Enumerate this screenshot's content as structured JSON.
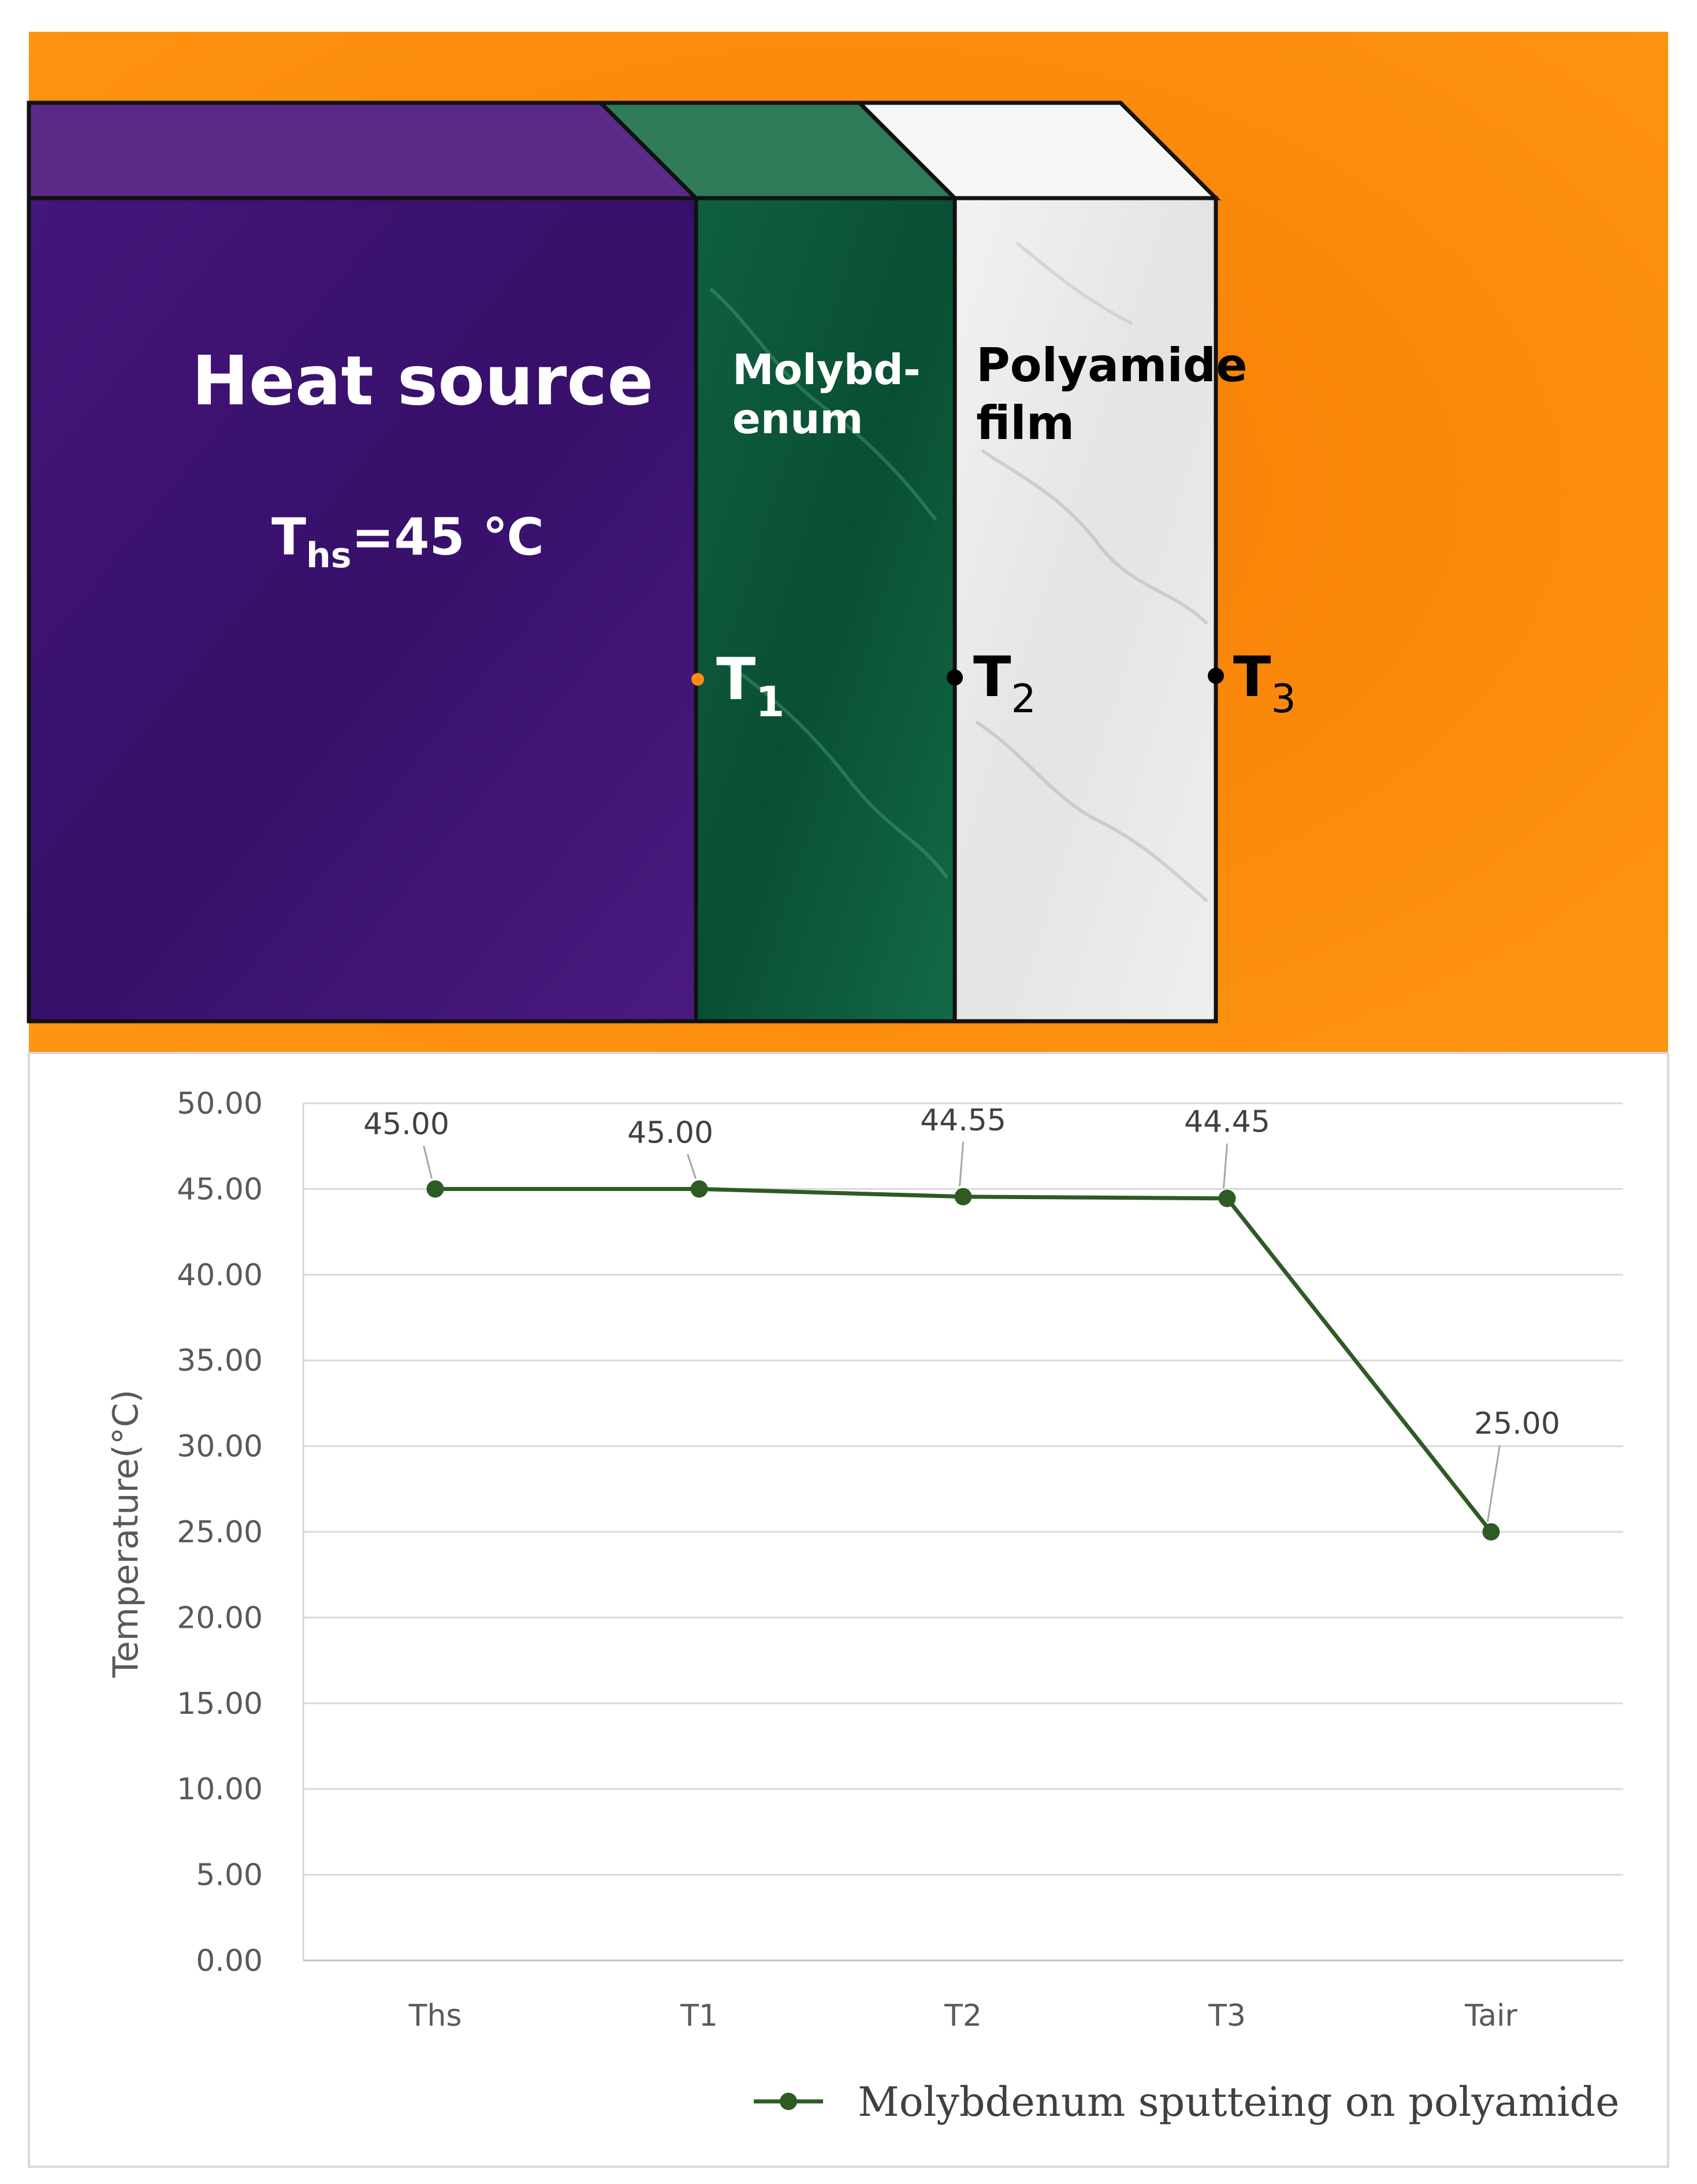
{
  "diagram": {
    "heat_source_label": "Heat source",
    "ths_main": "T",
    "ths_sub": "hs",
    "ths_value": "=45 ℃",
    "molybdenum_line1": "Molybd-",
    "molybdenum_line2": "enum",
    "polyamide_line1": "Polyamide",
    "polyamide_line2": "film",
    "t1_main": "T",
    "t1_sub": "1",
    "t2_main": "T",
    "t2_sub": "2",
    "t3_main": "T",
    "t3_sub": "3",
    "colors": {
      "background": "#ff8c0a",
      "heat_source": "#3d1270",
      "molybdenum": "#0d5a3a",
      "polyamide": "#e9e9e9",
      "t1_dot": "#ff8c0a"
    }
  },
  "chart_data": {
    "type": "line",
    "categories": [
      "Ths",
      "T1",
      "T2",
      "T3",
      "Tair"
    ],
    "series": [
      {
        "name": "Molybdenum  sputteing on polyamide",
        "values": [
          45.0,
          45.0,
          44.55,
          44.45,
          25.0
        ],
        "color": "#2e5a24"
      }
    ],
    "data_labels": [
      "45.00",
      "45.00",
      "44.55",
      "44.45",
      "25.00"
    ],
    "ylabel": "Temperature(°C)",
    "xlabel": "",
    "ylim": [
      0,
      50
    ],
    "yticks": [
      "0.00",
      "5.00",
      "10.00",
      "15.00",
      "20.00",
      "25.00",
      "30.00",
      "35.00",
      "40.00",
      "45.00",
      "50.00"
    ],
    "grid": true,
    "legend_position": "bottom"
  }
}
